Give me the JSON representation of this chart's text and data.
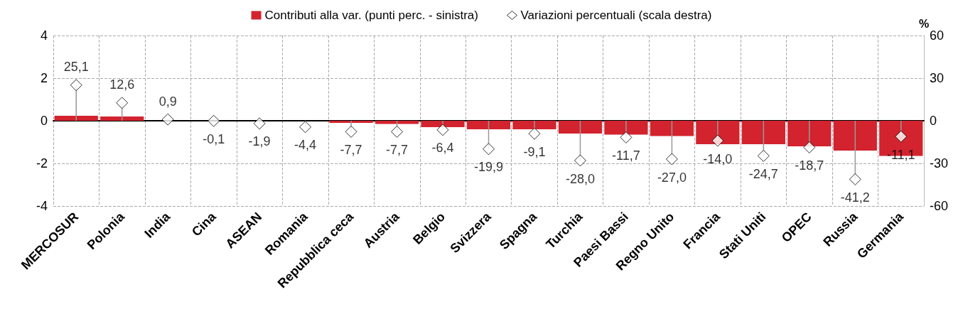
{
  "chart_data": {
    "type": "bar",
    "categories": [
      "MERCOSUR",
      "Polonia",
      "India",
      "Cina",
      "ASEAN",
      "Romania",
      "Repubblica ceca",
      "Austria",
      "Belgio",
      "Svizzera",
      "Spagna",
      "Turchia",
      "Paesi Bassi",
      "Regno Unito",
      "Francia",
      "Stati Uniti",
      "OPEC",
      "Russia",
      "Germania"
    ],
    "series": [
      {
        "name": "Contributi alla var. (punti perc. - sinistra)",
        "color": "#d2232e",
        "values": [
          0.23,
          0.2,
          0,
          0,
          0,
          0,
          -0.1,
          -0.15,
          -0.3,
          -0.4,
          -0.4,
          -0.6,
          -0.65,
          -0.72,
          -1.1,
          -1.1,
          -1.2,
          -1.4,
          -1.65
        ]
      },
      {
        "name": "Variazioni percentuali (scala destra)",
        "type": "lollipop",
        "axis": "y2",
        "color": "#ffffff",
        "marker": "diamond",
        "value_labels": [
          "25,1",
          "12,6",
          "0,9",
          "-0,1",
          "-1,9",
          "-4,4",
          "-7,7",
          "-7,7",
          "-6,4",
          "-19,9",
          "-9,1",
          "-28,0",
          "-11,7",
          "-27,0",
          "-14,0",
          "-24,7",
          "-18,7",
          "-41,2",
          "-11,1"
        ],
        "values": [
          25.1,
          12.6,
          0.9,
          -0.1,
          -1.9,
          -4.4,
          -7.7,
          -7.7,
          -6.4,
          -19.9,
          -9.1,
          -28.0,
          -11.7,
          -27.0,
          -14.0,
          -24.7,
          -18.7,
          -41.2,
          -11.1
        ]
      }
    ],
    "y2label": "%",
    "ylim": [
      -4,
      4
    ],
    "yticks": [
      -4,
      -2,
      0,
      2,
      4
    ],
    "y2lim": [
      -60,
      60
    ],
    "y2ticks": [
      -60,
      -30,
      0,
      30,
      60
    ],
    "grid": true,
    "legend": "top"
  }
}
